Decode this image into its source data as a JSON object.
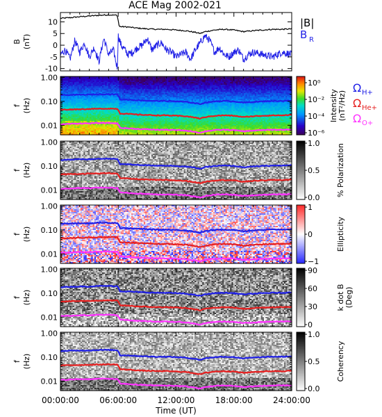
{
  "title": "ACE Mag 2002-021",
  "x_axis": {
    "label": "Time (UT)",
    "ticks": [
      "00:00:00",
      "06:00:00",
      "12:00:00",
      "18:00:00",
      "24:00:00"
    ],
    "range_hours": [
      0,
      24
    ]
  },
  "colors": {
    "total_field": "#000000",
    "radial_field": "#1f1fe6",
    "h_plus": "#1f1fe6",
    "he_plus": "#e61f1f",
    "o_plus": "#ff33ff"
  },
  "chart_data": [
    {
      "type": "line",
      "panel": "B",
      "ylabel": "B",
      "yunit": "(nT)",
      "yticks": [
        "10",
        "5",
        "0",
        "-5",
        "-10"
      ],
      "ylim": [
        -11,
        14
      ],
      "legend": {
        "total": "|B|",
        "radial": "B",
        "radial_sub": "R"
      },
      "series": [
        {
          "name": "|B|",
          "x": [
            0,
            1,
            2,
            3,
            4,
            5,
            5.9,
            6.1,
            7,
            8,
            9,
            10,
            11,
            12,
            13,
            14,
            14.5,
            15,
            16,
            17,
            18,
            19,
            20,
            21,
            22,
            23,
            24
          ],
          "y": [
            11.5,
            11.8,
            12.2,
            12.5,
            12.8,
            13,
            12.8,
            8,
            7.8,
            7.3,
            7,
            6.8,
            6.8,
            6.5,
            6.2,
            5.5,
            5,
            5.8,
            6.5,
            6.8,
            6.5,
            5.8,
            6.2,
            6.5,
            6.8,
            6.8,
            7
          ]
        },
        {
          "name": "B",
          "x": [
            0,
            0.5,
            1,
            1.5,
            2,
            2.5,
            3,
            3.5,
            4,
            4.5,
            5,
            5.5,
            5.9,
            6.0,
            6.3,
            6.7,
            7,
            7.5,
            8,
            8.5,
            9,
            9.5,
            10,
            10.5,
            11,
            11.5,
            12,
            12.5,
            13,
            13.5,
            14,
            14.5,
            15,
            15.5,
            16,
            16.5,
            17,
            17.5,
            18,
            18.5,
            19,
            19.5,
            20,
            21,
            22,
            23,
            24
          ],
          "y": [
            -4,
            -2,
            -6,
            2,
            -3,
            1,
            -5,
            -1,
            -7,
            3,
            -4,
            -2,
            -10,
            4,
            0,
            -2,
            -4,
            -3,
            -1,
            0,
            3,
            -2,
            0,
            1,
            -2,
            -3,
            -5,
            -4,
            -3,
            -6,
            -2,
            1,
            4,
            2,
            -3,
            -1,
            -4,
            -5,
            -3,
            -2,
            -6,
            -4,
            -3,
            -4,
            -5,
            -3,
            -4
          ]
        }
      ]
    },
    {
      "type": "heatmap",
      "panel": "intensity",
      "ylabel": "f",
      "yunit": "(Hz)",
      "yticks": [
        "1.00",
        "0.10",
        "0.01"
      ],
      "ylim_hz": [
        0.004,
        1.1
      ],
      "colorbar": {
        "label": "Intensity",
        "unit": "(nT²/Hz)",
        "ticks": [
          "10⁰",
          "10⁻²",
          "10⁻⁴",
          "10⁻⁶"
        ],
        "range_log10": [
          -6,
          0.5
        ]
      },
      "legend": [
        "ΩH+",
        "ΩHe+",
        "ΩO+"
      ]
    },
    {
      "type": "heatmap",
      "panel": "polarization",
      "ylabel": "f",
      "yunit": "(Hz)",
      "yticks": [
        "1.00",
        "0.10",
        "0.01"
      ],
      "colorbar": {
        "label": "% Polarization",
        "ticks": [
          "1.0",
          "0.5",
          "0.0"
        ],
        "range": [
          0,
          1
        ]
      }
    },
    {
      "type": "heatmap",
      "panel": "ellipticity",
      "ylabel": "f",
      "yunit": "(Hz)",
      "yticks": [
        "1.00",
        "0.10",
        "0.01"
      ],
      "colorbar": {
        "label": "Ellipticity",
        "ticks": [
          "1",
          "0",
          "−1"
        ],
        "range": [
          -1,
          1
        ]
      }
    },
    {
      "type": "heatmap",
      "panel": "kdotb",
      "ylabel": "f",
      "yunit": "(Hz)",
      "yticks": [
        "1.00",
        "0.10",
        "0.01"
      ],
      "colorbar": {
        "label": "k dot B",
        "unit": "(Deg)",
        "ticks": [
          "90",
          "60",
          "30",
          "0"
        ],
        "range": [
          0,
          90
        ]
      }
    },
    {
      "type": "heatmap",
      "panel": "coherency",
      "ylabel": "f",
      "yunit": "(Hz)",
      "yticks": [
        "1.00",
        "0.10",
        "0.01"
      ],
      "colorbar": {
        "label": "Coherency",
        "ticks": [
          "1.0",
          "0.5",
          "0.0"
        ],
        "range": [
          0,
          1
        ]
      }
    }
  ],
  "gyro_lines": {
    "x": [
      0,
      1,
      2,
      3,
      4,
      5,
      5.9,
      6.2,
      7,
      8,
      9,
      10,
      11,
      12,
      13,
      14,
      14.5,
      15,
      16,
      17,
      18,
      19,
      20,
      21,
      22,
      23,
      24
    ],
    "h_plus_hz": [
      0.18,
      0.185,
      0.19,
      0.19,
      0.2,
      0.2,
      0.195,
      0.12,
      0.118,
      0.112,
      0.107,
      0.104,
      0.104,
      0.1,
      0.095,
      0.084,
      0.077,
      0.089,
      0.1,
      0.104,
      0.1,
      0.089,
      0.095,
      0.1,
      0.104,
      0.104,
      0.107
    ],
    "he_plus_hz": [
      0.045,
      0.046,
      0.047,
      0.048,
      0.049,
      0.05,
      0.049,
      0.031,
      0.03,
      0.028,
      0.027,
      0.026,
      0.026,
      0.025,
      0.024,
      0.021,
      0.019,
      0.022,
      0.025,
      0.026,
      0.025,
      0.022,
      0.024,
      0.025,
      0.026,
      0.026,
      0.027
    ],
    "o_plus_hz": [
      0.011,
      0.0115,
      0.012,
      0.012,
      0.0125,
      0.0125,
      0.012,
      0.0078,
      0.0075,
      0.007,
      0.0068,
      0.0065,
      0.0065,
      0.0063,
      0.006,
      0.0053,
      0.0048,
      0.0056,
      0.0063,
      0.0065,
      0.0063,
      0.0056,
      0.006,
      0.0063,
      0.0065,
      0.0065,
      0.0067
    ]
  }
}
